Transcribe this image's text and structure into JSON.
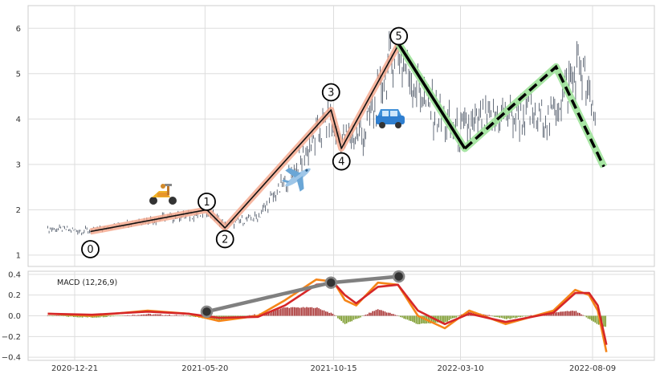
{
  "chart_data": [
    {
      "type": "candlestick",
      "x_ticks": [
        "2020-12-21",
        "2021-05-20",
        "2021-10-15",
        "2022-03-10",
        "2022-08-09"
      ],
      "y_ticks": [
        1,
        2,
        3,
        4,
        5,
        6
      ],
      "ylim": [
        0.75,
        6.5
      ],
      "grid": true,
      "price_path": [
        {
          "date": "2020-11-20",
          "value": 1.58
        },
        {
          "date": "2021-01-10",
          "value": 1.53
        },
        {
          "date": "2021-03-01",
          "value": 1.75
        },
        {
          "date": "2021-05-15",
          "value": 1.9
        },
        {
          "date": "2021-05-22",
          "value": 2.0
        },
        {
          "date": "2021-06-12",
          "value": 1.65
        },
        {
          "date": "2021-07-20",
          "value": 1.85
        },
        {
          "date": "2021-08-20",
          "value": 2.6
        },
        {
          "date": "2021-10-10",
          "value": 4.0
        },
        {
          "date": "2021-10-20",
          "value": 3.55
        },
        {
          "date": "2021-11-20",
          "value": 3.7
        },
        {
          "date": "2021-12-25",
          "value": 5.55
        },
        {
          "date": "2022-02-01",
          "value": 4.3
        },
        {
          "date": "2022-03-05",
          "value": 3.7
        },
        {
          "date": "2022-05-01",
          "value": 4.1
        },
        {
          "date": "2022-06-20",
          "value": 4.0
        },
        {
          "date": "2022-07-25",
          "value": 5.2
        },
        {
          "date": "2022-08-12",
          "value": 4.0
        }
      ],
      "waves": [
        {
          "label": "0",
          "date": "2021-01-08",
          "value": 1.52
        },
        {
          "label": "1",
          "date": "2021-05-22",
          "value": 2.0
        },
        {
          "label": "2",
          "date": "2021-06-12",
          "value": 1.6
        },
        {
          "label": "3",
          "date": "2021-10-12",
          "value": 4.2
        },
        {
          "label": "4",
          "date": "2021-10-24",
          "value": 3.35
        },
        {
          "label": "5",
          "date": "2021-12-29",
          "value": 5.65
        }
      ],
      "projection": [
        {
          "date": "2021-12-29",
          "value": 5.65
        },
        {
          "date": "2022-03-15",
          "value": 3.35
        },
        {
          "date": "2022-06-28",
          "value": 5.15
        },
        {
          "date": "2022-08-22",
          "value": 2.95
        }
      ],
      "colors": {
        "wave_band": "#f4a58a",
        "wave_line": "#111111",
        "projection_band": "#9ee29a",
        "candle": "#3f4a5a"
      },
      "icons": [
        "scooter-icon",
        "airplane-icon",
        "car-icon"
      ]
    },
    {
      "type": "line",
      "legend": "MACD (12,26,9)",
      "y_ticks": [
        "0.4",
        "0.2",
        "0.0",
        "−0.2",
        "−0.4"
      ],
      "ylim": [
        -0.43,
        0.43
      ],
      "macd": [
        {
          "date": "2020-11-20",
          "value": 0.02
        },
        {
          "date": "2021-01-10",
          "value": 0.0
        },
        {
          "date": "2021-03-15",
          "value": 0.05
        },
        {
          "date": "2021-05-01",
          "value": 0.02
        },
        {
          "date": "2021-06-05",
          "value": -0.05
        },
        {
          "date": "2021-07-20",
          "value": 0.0
        },
        {
          "date": "2021-08-20",
          "value": 0.15
        },
        {
          "date": "2021-09-25",
          "value": 0.35
        },
        {
          "date": "2021-10-15",
          "value": 0.33
        },
        {
          "date": "2021-10-28",
          "value": 0.15
        },
        {
          "date": "2021-11-10",
          "value": 0.1
        },
        {
          "date": "2021-12-05",
          "value": 0.32
        },
        {
          "date": "2021-12-28",
          "value": 0.3
        },
        {
          "date": "2022-01-20",
          "value": 0.0
        },
        {
          "date": "2022-02-20",
          "value": -0.12
        },
        {
          "date": "2022-03-20",
          "value": 0.05
        },
        {
          "date": "2022-05-01",
          "value": -0.08
        },
        {
          "date": "2022-06-25",
          "value": 0.05
        },
        {
          "date": "2022-07-20",
          "value": 0.25
        },
        {
          "date": "2022-08-05",
          "value": 0.2
        },
        {
          "date": "2022-08-15",
          "value": 0.05
        },
        {
          "date": "2022-08-25",
          "value": -0.35
        }
      ],
      "signal": [
        {
          "date": "2020-11-20",
          "value": 0.02
        },
        {
          "date": "2021-01-10",
          "value": 0.01
        },
        {
          "date": "2021-03-15",
          "value": 0.04
        },
        {
          "date": "2021-05-01",
          "value": 0.02
        },
        {
          "date": "2021-06-05",
          "value": -0.02
        },
        {
          "date": "2021-07-20",
          "value": -0.01
        },
        {
          "date": "2021-08-20",
          "value": 0.1
        },
        {
          "date": "2021-09-25",
          "value": 0.3
        },
        {
          "date": "2021-10-15",
          "value": 0.32
        },
        {
          "date": "2021-10-28",
          "value": 0.2
        },
        {
          "date": "2021-11-10",
          "value": 0.12
        },
        {
          "date": "2021-12-05",
          "value": 0.28
        },
        {
          "date": "2021-12-28",
          "value": 0.3
        },
        {
          "date": "2022-01-20",
          "value": 0.05
        },
        {
          "date": "2022-02-20",
          "value": -0.08
        },
        {
          "date": "2022-03-20",
          "value": 0.02
        },
        {
          "date": "2022-05-01",
          "value": -0.06
        },
        {
          "date": "2022-06-25",
          "value": 0.03
        },
        {
          "date": "2022-07-20",
          "value": 0.22
        },
        {
          "date": "2022-08-05",
          "value": 0.22
        },
        {
          "date": "2022-08-15",
          "value": 0.1
        },
        {
          "date": "2022-08-25",
          "value": -0.28
        }
      ],
      "divergence": [
        {
          "date": "2021-05-22",
          "value": 0.04
        },
        {
          "date": "2021-10-12",
          "value": 0.32
        },
        {
          "date": "2021-12-29",
          "value": 0.38
        }
      ],
      "colors": {
        "macd": "#f58518",
        "signal": "#d62728",
        "hist_pos": "#a83232",
        "hist_neg": "#7a9a2a",
        "divergence": "#808080"
      }
    }
  ]
}
